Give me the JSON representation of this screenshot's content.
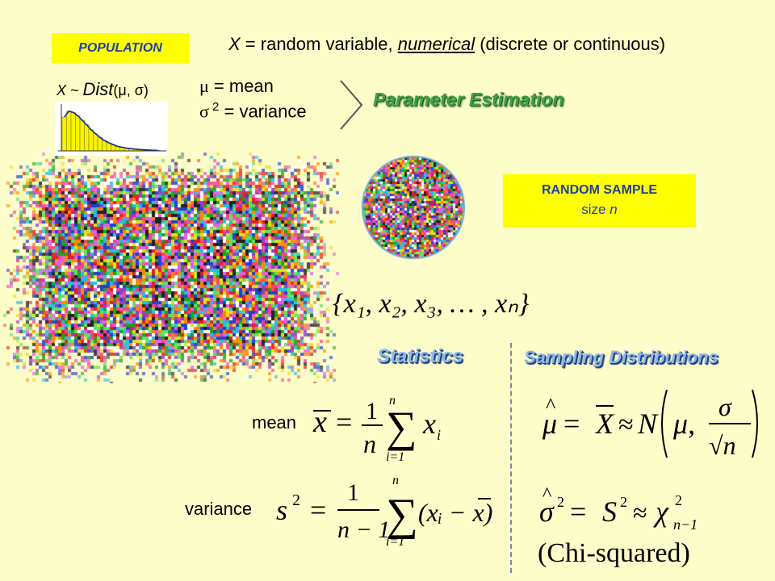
{
  "population_label": "POPULATION",
  "x_def": {
    "x": "X",
    "eq": " = random variable, ",
    "numerical": "numerical",
    "rest": " (discrete or continuous)"
  },
  "dist": {
    "prefix": "X ~ ",
    "name": "Dist",
    "params": "(μ, σ)",
    "histogram_bins": [
      0.75,
      0.88,
      0.85,
      0.78,
      0.68,
      0.58,
      0.47,
      0.38,
      0.3,
      0.23,
      0.18,
      0.14,
      0.1,
      0.08,
      0.06,
      0.05,
      0.04,
      0.03,
      0.025,
      0.02,
      0.015,
      0.012
    ]
  },
  "params": {
    "mu": "μ",
    "mu_text": " = mean",
    "sigma": "σ",
    "sigma_sup": " 2",
    "sigma_text": " = variance"
  },
  "parameter_estimation": "Parameter Estimation",
  "sample": {
    "title": "RANDOM SAMPLE",
    "size_prefix": "size ",
    "size_n": "n"
  },
  "sample_set": "{x₁, x₂, x₃, … , xₙ}",
  "statistics_label": "Statistics",
  "sampling_label": "Sampling Distributions",
  "mean_label": "mean",
  "variance_label": "variance",
  "formulas": {
    "xbar": "x",
    "equals": "=",
    "one": "1",
    "n": "n",
    "n_minus_1": "n − 1",
    "sum": "∑",
    "sum_top": "n",
    "sum_bottom": "i=1",
    "x_i": "x",
    "sub_i": "i",
    "s2": "s",
    "sup2": "2",
    "dev": "(xᵢ − x)",
    "mu_hat": "μ",
    "hat": "^",
    "Xbar": "X",
    "approx": "≈",
    "N": "N",
    "mu": "μ,",
    "sigma": "σ",
    "sqrt_n": "√n",
    "sigma_hat": "σ",
    "S": "S",
    "chi": "χ",
    "chi_sub": "n−1",
    "chi_squared_note": "(Chi-squared)"
  }
}
